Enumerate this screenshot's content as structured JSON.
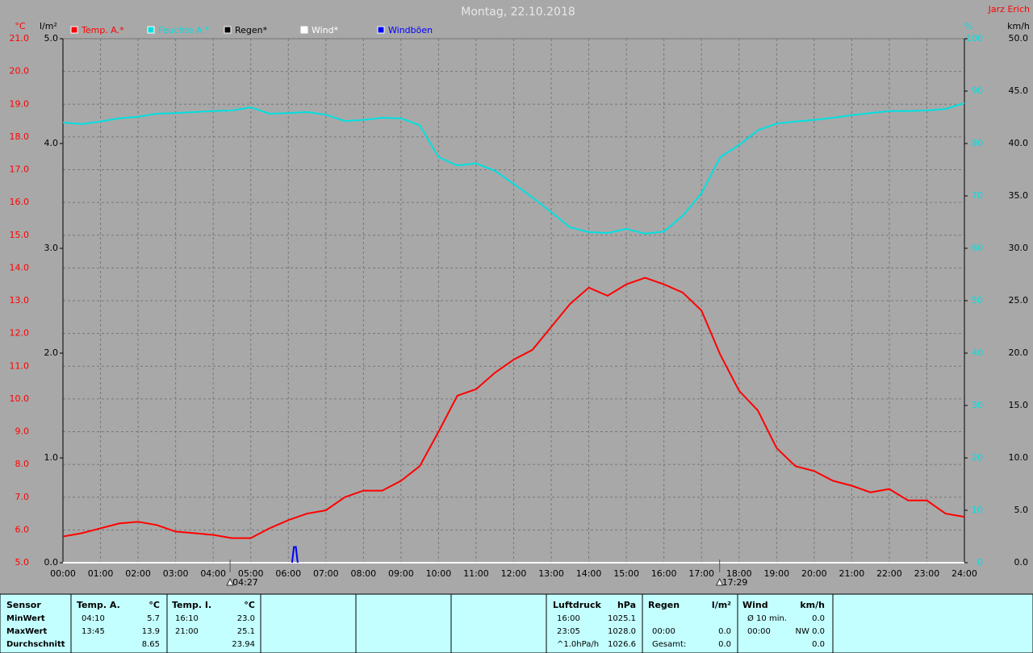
{
  "chart_data": {
    "type": "line",
    "title": "Montag, 22.10.2018",
    "author": "Jarz Erich",
    "ylabel": "°C",
    "y2label": "l/m²",
    "y3label": "%",
    "y4label": "km/h",
    "grid": true,
    "xlim": [
      0,
      24
    ],
    "xticks": [
      {
        "value": 0,
        "label": "00:00"
      },
      {
        "value": 1,
        "label": "01:00"
      },
      {
        "value": 2,
        "label": "02:00"
      },
      {
        "value": 3,
        "label": "03:00"
      },
      {
        "value": 4,
        "label": "04:00"
      },
      {
        "value": 5,
        "label": "05:00"
      },
      {
        "value": 6,
        "label": "06:00"
      },
      {
        "value": 7,
        "label": "07:00"
      },
      {
        "value": 8,
        "label": "08:00"
      },
      {
        "value": 9,
        "label": "09:00"
      },
      {
        "value": 10,
        "label": "10:00"
      },
      {
        "value": 11,
        "label": "11:00"
      },
      {
        "value": 12,
        "label": "12:00"
      },
      {
        "value": 13,
        "label": "13:00"
      },
      {
        "value": 14,
        "label": "14:00"
      },
      {
        "value": 15,
        "label": "15:00"
      },
      {
        "value": 16,
        "label": "16:00"
      },
      {
        "value": 17,
        "label": "17:00"
      },
      {
        "value": 18,
        "label": "18:00"
      },
      {
        "value": 19,
        "label": "19:00"
      },
      {
        "value": 20,
        "label": "20:00"
      },
      {
        "value": 21,
        "label": "21:00"
      },
      {
        "value": 22,
        "label": "22:00"
      },
      {
        "value": 23,
        "label": "23:00"
      },
      {
        "value": 24,
        "label": "24:00"
      }
    ],
    "ylim": [
      5,
      21
    ],
    "yticks": [
      {
        "value": 5,
        "label": "5.0"
      },
      {
        "value": 6,
        "label": "6.0"
      },
      {
        "value": 7,
        "label": "7.0"
      },
      {
        "value": 8,
        "label": "8.0"
      },
      {
        "value": 9,
        "label": "9.0"
      },
      {
        "value": 10,
        "label": "10.0"
      },
      {
        "value": 11,
        "label": "11.0"
      },
      {
        "value": 12,
        "label": "12.0"
      },
      {
        "value": 13,
        "label": "13.0"
      },
      {
        "value": 14,
        "label": "14.0"
      },
      {
        "value": 15,
        "label": "15.0"
      },
      {
        "value": 16,
        "label": "16.0"
      },
      {
        "value": 17,
        "label": "17.0"
      },
      {
        "value": 18,
        "label": "18.0"
      },
      {
        "value": 19,
        "label": "19.0"
      },
      {
        "value": 20,
        "label": "20.0"
      },
      {
        "value": 21,
        "label": "21.0"
      }
    ],
    "y2lim": [
      0,
      5
    ],
    "y2ticks": [
      {
        "value": 0,
        "label": "0.0"
      },
      {
        "value": 1,
        "label": "1.0"
      },
      {
        "value": 2,
        "label": "2.0"
      },
      {
        "value": 3,
        "label": "3.0"
      },
      {
        "value": 4,
        "label": "4.0"
      },
      {
        "value": 5,
        "label": "5.0"
      }
    ],
    "y3lim": [
      0,
      100
    ],
    "y3ticks": [
      0,
      10,
      20,
      30,
      40,
      50,
      60,
      70,
      80,
      90,
      100
    ],
    "y4lim": [
      0,
      50
    ],
    "y4ticks": [
      {
        "value": 0,
        "label": "0.0"
      },
      {
        "value": 5,
        "label": "5.0"
      },
      {
        "value": 10,
        "label": "10.0"
      },
      {
        "value": 15,
        "label": "15.0"
      },
      {
        "value": 20,
        "label": "20.0"
      },
      {
        "value": 25,
        "label": "25.0"
      },
      {
        "value": 30,
        "label": "30.0"
      },
      {
        "value": 35,
        "label": "35.0"
      },
      {
        "value": 40,
        "label": "40.0"
      },
      {
        "value": 45,
        "label": "45.0"
      },
      {
        "value": 50,
        "label": "50.0"
      }
    ],
    "x": [
      0,
      0.5,
      1,
      1.5,
      2,
      2.5,
      3,
      3.5,
      4,
      4.5,
      5,
      5.5,
      6,
      6.5,
      7,
      7.5,
      8,
      8.5,
      9,
      9.5,
      10,
      10.5,
      11,
      11.5,
      12,
      12.5,
      13,
      13.5,
      14,
      14.5,
      15,
      15.5,
      16,
      16.5,
      17,
      17.5,
      18,
      18.5,
      19,
      19.5,
      20,
      20.5,
      21,
      21.5,
      22,
      22.5,
      23,
      23.5,
      24
    ],
    "series": [
      {
        "name": "Temp. A.*",
        "color": "#ff0000",
        "axis": "y",
        "values": [
          5.8,
          5.9,
          6.05,
          6.2,
          6.25,
          6.15,
          5.95,
          5.9,
          5.85,
          5.75,
          5.75,
          6.05,
          6.3,
          6.5,
          6.6,
          7.0,
          7.2,
          7.2,
          7.5,
          7.95,
          9.0,
          10.1,
          10.3,
          10.8,
          11.2,
          11.5,
          12.2,
          12.9,
          13.4,
          13.15,
          13.5,
          13.7,
          13.5,
          13.25,
          12.7,
          11.35,
          10.25,
          9.65,
          8.5,
          7.95,
          7.8,
          7.5,
          7.35,
          7.15,
          7.25,
          6.9,
          6.9,
          6.5,
          6.4
        ]
      },
      {
        "name": "Feuchte A.*",
        "color": "#00e0e0",
        "axis": "y3",
        "values": [
          84,
          83.7,
          84.2,
          84.8,
          85.1,
          85.7,
          85.8,
          86,
          86.2,
          86.3,
          86.9,
          85.7,
          85.8,
          86,
          85.5,
          84.3,
          84.5,
          84.9,
          84.8,
          83.5,
          77.4,
          75.8,
          76.2,
          74.8,
          72.3,
          69.7,
          66.9,
          64,
          63.1,
          62.9,
          63.7,
          62.8,
          63.2,
          66.2,
          70.5,
          77.4,
          79.7,
          82.5,
          83.8,
          84.2,
          84.5,
          84.9,
          85.4,
          85.8,
          86.2,
          86.2,
          86.3,
          86.6,
          87.7
        ]
      },
      {
        "name": "Regen*",
        "color": "#000000",
        "axis": "y2",
        "x": [
          0,
          24
        ],
        "values": [
          0,
          0
        ]
      },
      {
        "name": "Wind*",
        "color": "#ffffff",
        "axis": "y4",
        "x": [
          0,
          24
        ],
        "values": [
          0,
          0
        ]
      },
      {
        "name": "Windböen",
        "color": "#0000ff",
        "axis": "y4",
        "x": [
          6.1,
          6.15,
          6.2,
          6.25
        ],
        "values": [
          0,
          1.5,
          1.5,
          0
        ]
      }
    ],
    "sun_markers": [
      {
        "x": 4.45,
        "label": "04:27"
      },
      {
        "x": 17.4833,
        "label": "17:29"
      }
    ]
  },
  "table": {
    "header": [
      "Sensor",
      "Temp. A.",
      "°C",
      "Temp. I.",
      "°C",
      "Luftdruck",
      "hPa",
      "Regen",
      "l/m²",
      "Wind",
      "km/h"
    ],
    "rows": [
      [
        "MinWert",
        "04:10",
        "5.7",
        "16:10",
        "23.0",
        "16:00",
        "1025.1",
        null,
        null,
        "Ø 10 min.",
        "0.0"
      ],
      [
        "MaxWert",
        "13:45",
        "13.9",
        "21:00",
        "25.1",
        "23:05",
        "1028.0",
        "00:00",
        "0.0",
        "00:00",
        "NW 0.0"
      ],
      [
        "Durchschnitt",
        null,
        "8.65",
        null,
        "23.94",
        "^1.0hPa/h",
        "1026.6",
        "Gesamt:",
        "0.0",
        null,
        "0.0"
      ]
    ]
  }
}
